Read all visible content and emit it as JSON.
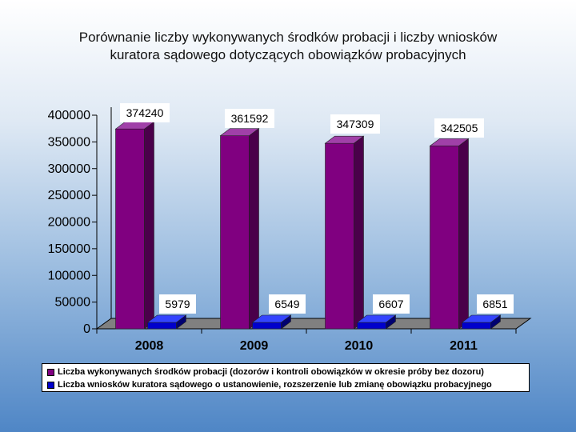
{
  "page": {
    "title_line1": "Porównanie liczby wykonywanych środków probacji i liczby wniosków",
    "title_line2": "kuratora sądowego dotyczących obowiązków probacyjnych"
  },
  "colors": {
    "series1_front": "#800080",
    "series1_side": "#4a004a",
    "series1_top": "#a040a8",
    "series2_front": "#0000cc",
    "series2_side": "#000070",
    "series2_top": "#3344ff",
    "floor": "#808080",
    "wall_line": "#000000"
  },
  "chart_data": {
    "type": "bar",
    "title": "Porównanie liczby wykonywanych środków probacji i liczby wniosków kuratora sądowego dotyczących obowiązków probacyjnych",
    "categories": [
      "2008",
      "2009",
      "2010",
      "2011"
    ],
    "series": [
      {
        "name": "Liczba wykonywanych środków probacji (dozorów i kontroli obowiązków w okresie próby bez dozoru)",
        "values": [
          374240,
          361592,
          347309,
          342505
        ],
        "labels": [
          "374240",
          "361592",
          "347309",
          "342505"
        ]
      },
      {
        "name": "Liczba wniosków kuratora sądowego o ustanowienie, rozszerzenie lub zmianę obowiązku probacyjnego",
        "values": [
          5979,
          6549,
          6607,
          6851
        ],
        "labels": [
          "5979",
          "6549",
          "6607",
          "6851"
        ]
      }
    ],
    "ylim": [
      0,
      400000
    ],
    "yticks": [
      "0",
      "50000",
      "100000",
      "150000",
      "200000",
      "250000",
      "300000",
      "350000",
      "400000"
    ],
    "legend_position": "bottom",
    "grid": false
  }
}
